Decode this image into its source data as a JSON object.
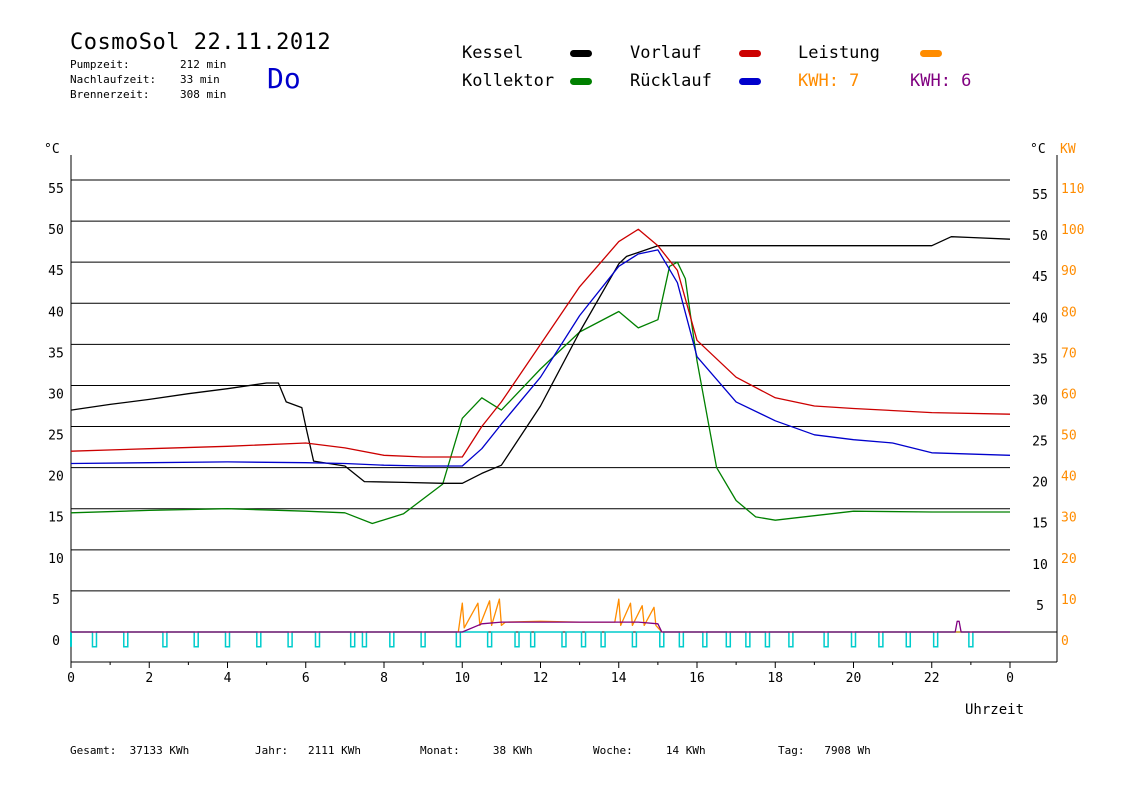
{
  "header": {
    "title": "CosmoSol 22.11.2012",
    "day": "Do",
    "stats": [
      {
        "label": "Pumpzeit:",
        "value": "212 min"
      },
      {
        "label": "Nachlaufzeit:",
        "value": "33 min"
      },
      {
        "label": "Brennerzeit:",
        "value": "308 min"
      }
    ]
  },
  "legend": {
    "kessel": "Kessel",
    "kollektor": "Kollektor",
    "vorlauf": "Vorlauf",
    "ruecklauf": "Rücklauf",
    "leistung": "Leistung",
    "kwh_orange": "KWH: 7",
    "kwh_purple": "KWH: 6"
  },
  "colors": {
    "kessel": "#000000",
    "kollektor": "#008000",
    "vorlauf": "#cc0000",
    "ruecklauf": "#0000cc",
    "leistung": "#ff8c00",
    "kwh_purple": "#800080",
    "pump": "#00cccc",
    "day": "#0000cc"
  },
  "footer": [
    {
      "label": "Gesamt:",
      "value": "37133 KWh"
    },
    {
      "label": "Jahr:",
      "value": "2111 KWh"
    },
    {
      "label": "Monat:",
      "value": "38 KWh"
    },
    {
      "label": "Woche:",
      "value": "14 KWh"
    },
    {
      "label": "Tag:",
      "value": "7908 Wh"
    }
  ],
  "chart_data": {
    "type": "line",
    "xlabel": "Uhrzeit",
    "x_ticks": [
      "0",
      "2",
      "4",
      "6",
      "8",
      "10",
      "12",
      "14",
      "16",
      "18",
      "20",
      "22",
      "0"
    ],
    "xlim": [
      0,
      24
    ],
    "y_unit_left": "°C",
    "y_unit_right_temp": "°C",
    "y_unit_right_power": "KW",
    "y_ticks_left": [
      "0",
      "5",
      "10",
      "15",
      "20",
      "25",
      "30",
      "35",
      "40",
      "45",
      "50",
      "55"
    ],
    "y_ticks_right_temp": [
      "5",
      "10",
      "15",
      "20",
      "25",
      "30",
      "35",
      "40",
      "45",
      "50",
      "55"
    ],
    "y_ticks_right_power": [
      "0",
      "10",
      "20",
      "30",
      "40",
      "50",
      "60",
      "70",
      "80",
      "90",
      "100",
      "110"
    ],
    "ylim": [
      0,
      60
    ],
    "grid": true,
    "series": [
      {
        "name": "Kessel",
        "x": [
          0,
          1,
          2,
          3,
          4,
          5,
          5.3,
          5.5,
          5.9,
          6.0,
          6.2,
          7.0,
          7.5,
          8.5,
          9.5,
          10.0,
          10.5,
          11.0,
          12.0,
          13.0,
          14.0,
          14.2,
          15.0,
          16.0,
          18.0,
          20.0,
          22.0,
          22.5,
          23.0,
          24.0
        ],
        "y": [
          27,
          27.7,
          28.3,
          29,
          29.6,
          30.3,
          30.3,
          28,
          27.3,
          25,
          20.8,
          20.2,
          18.3,
          18.2,
          18.1,
          18.1,
          19.3,
          20.3,
          27.5,
          36.5,
          44.8,
          45.7,
          47,
          47,
          47,
          47,
          47,
          48.1,
          48,
          47.8
        ]
      },
      {
        "name": "Kollektor",
        "x": [
          0,
          2,
          4,
          6,
          7,
          7.7,
          8.5,
          9.5,
          10.0,
          10.5,
          11.0,
          12.0,
          13.0,
          14.0,
          14.5,
          15.0,
          15.3,
          15.5,
          15.7,
          16.0,
          16.5,
          17.0,
          17.5,
          18.0,
          20.0,
          22.0,
          24.0
        ],
        "y": [
          14.5,
          14.8,
          15,
          14.7,
          14.5,
          13.2,
          14.4,
          18,
          26,
          28.5,
          27,
          32,
          36.5,
          39,
          37,
          38,
          44.5,
          45,
          43,
          33,
          20,
          16,
          14,
          13.6,
          14.7,
          14.6,
          14.6
        ]
      },
      {
        "name": "Vorlauf",
        "x": [
          0,
          2,
          4,
          6,
          7,
          8,
          9,
          10.0,
          10.5,
          11.0,
          12.0,
          13.0,
          14.0,
          14.5,
          15.0,
          15.5,
          16.0,
          17.0,
          18.0,
          19.0,
          20.0,
          22.0,
          24.0
        ],
        "y": [
          22,
          22.3,
          22.6,
          23,
          22.4,
          21.5,
          21.3,
          21.3,
          25,
          28,
          35,
          42,
          47.5,
          49,
          47,
          44,
          35.5,
          31,
          28.5,
          27.5,
          27.2,
          26.7,
          26.5
        ]
      },
      {
        "name": "Rücklauf",
        "x": [
          0,
          2,
          4,
          6,
          7,
          8,
          9,
          10.0,
          10.5,
          11.0,
          12.0,
          13.0,
          14.0,
          14.5,
          15.0,
          15.5,
          16.0,
          17.0,
          18.0,
          19.0,
          20.0,
          21.0,
          22.0,
          24.0
        ],
        "y": [
          20.5,
          20.6,
          20.7,
          20.6,
          20.5,
          20.3,
          20.2,
          20.2,
          22.3,
          25.3,
          31,
          38.5,
          44.5,
          46,
          46.5,
          42.5,
          33.5,
          28,
          25.7,
          24,
          23.4,
          23,
          21.8,
          21.5
        ]
      },
      {
        "name": "Leistung",
        "x": [
          0,
          9.9,
          10.0,
          10.05,
          10.4,
          10.45,
          10.7,
          10.75,
          10.95,
          11.0,
          11.1,
          12.0,
          13.0,
          13.9,
          14.0,
          14.05,
          14.3,
          14.35,
          14.6,
          14.65,
          14.9,
          14.95,
          15.1,
          24.0
        ],
        "y": [
          0,
          0,
          3.5,
          0.5,
          3.5,
          0.8,
          3.8,
          0.8,
          4.0,
          0.8,
          1.2,
          1.3,
          1.2,
          1.2,
          4.0,
          0.8,
          3.5,
          0.8,
          3.2,
          0.8,
          3.0,
          0.8,
          0,
          0
        ]
      },
      {
        "name": "KWH",
        "x": [
          0,
          10.0,
          10.5,
          11.0,
          12.0,
          14.0,
          14.5,
          15.0,
          15.1,
          22.6,
          22.65,
          22.7,
          22.75,
          24.0
        ],
        "y": [
          0,
          0,
          1,
          1.2,
          1.2,
          1.2,
          1.2,
          1,
          0,
          0,
          1.3,
          1.3,
          0,
          0
        ]
      }
    ],
    "pump_pulses_hours": [
      0.6,
      1.4,
      2.4,
      3.2,
      4.0,
      4.8,
      5.6,
      6.3,
      7.2,
      7.5,
      8.2,
      9.0,
      9.9,
      10.7,
      11.4,
      11.8,
      12.6,
      13.1,
      13.6,
      14.4,
      15.1,
      15.6,
      16.2,
      16.8,
      17.3,
      17.8,
      18.4,
      19.3,
      20.0,
      20.7,
      21.4,
      22.1,
      23.0
    ]
  }
}
